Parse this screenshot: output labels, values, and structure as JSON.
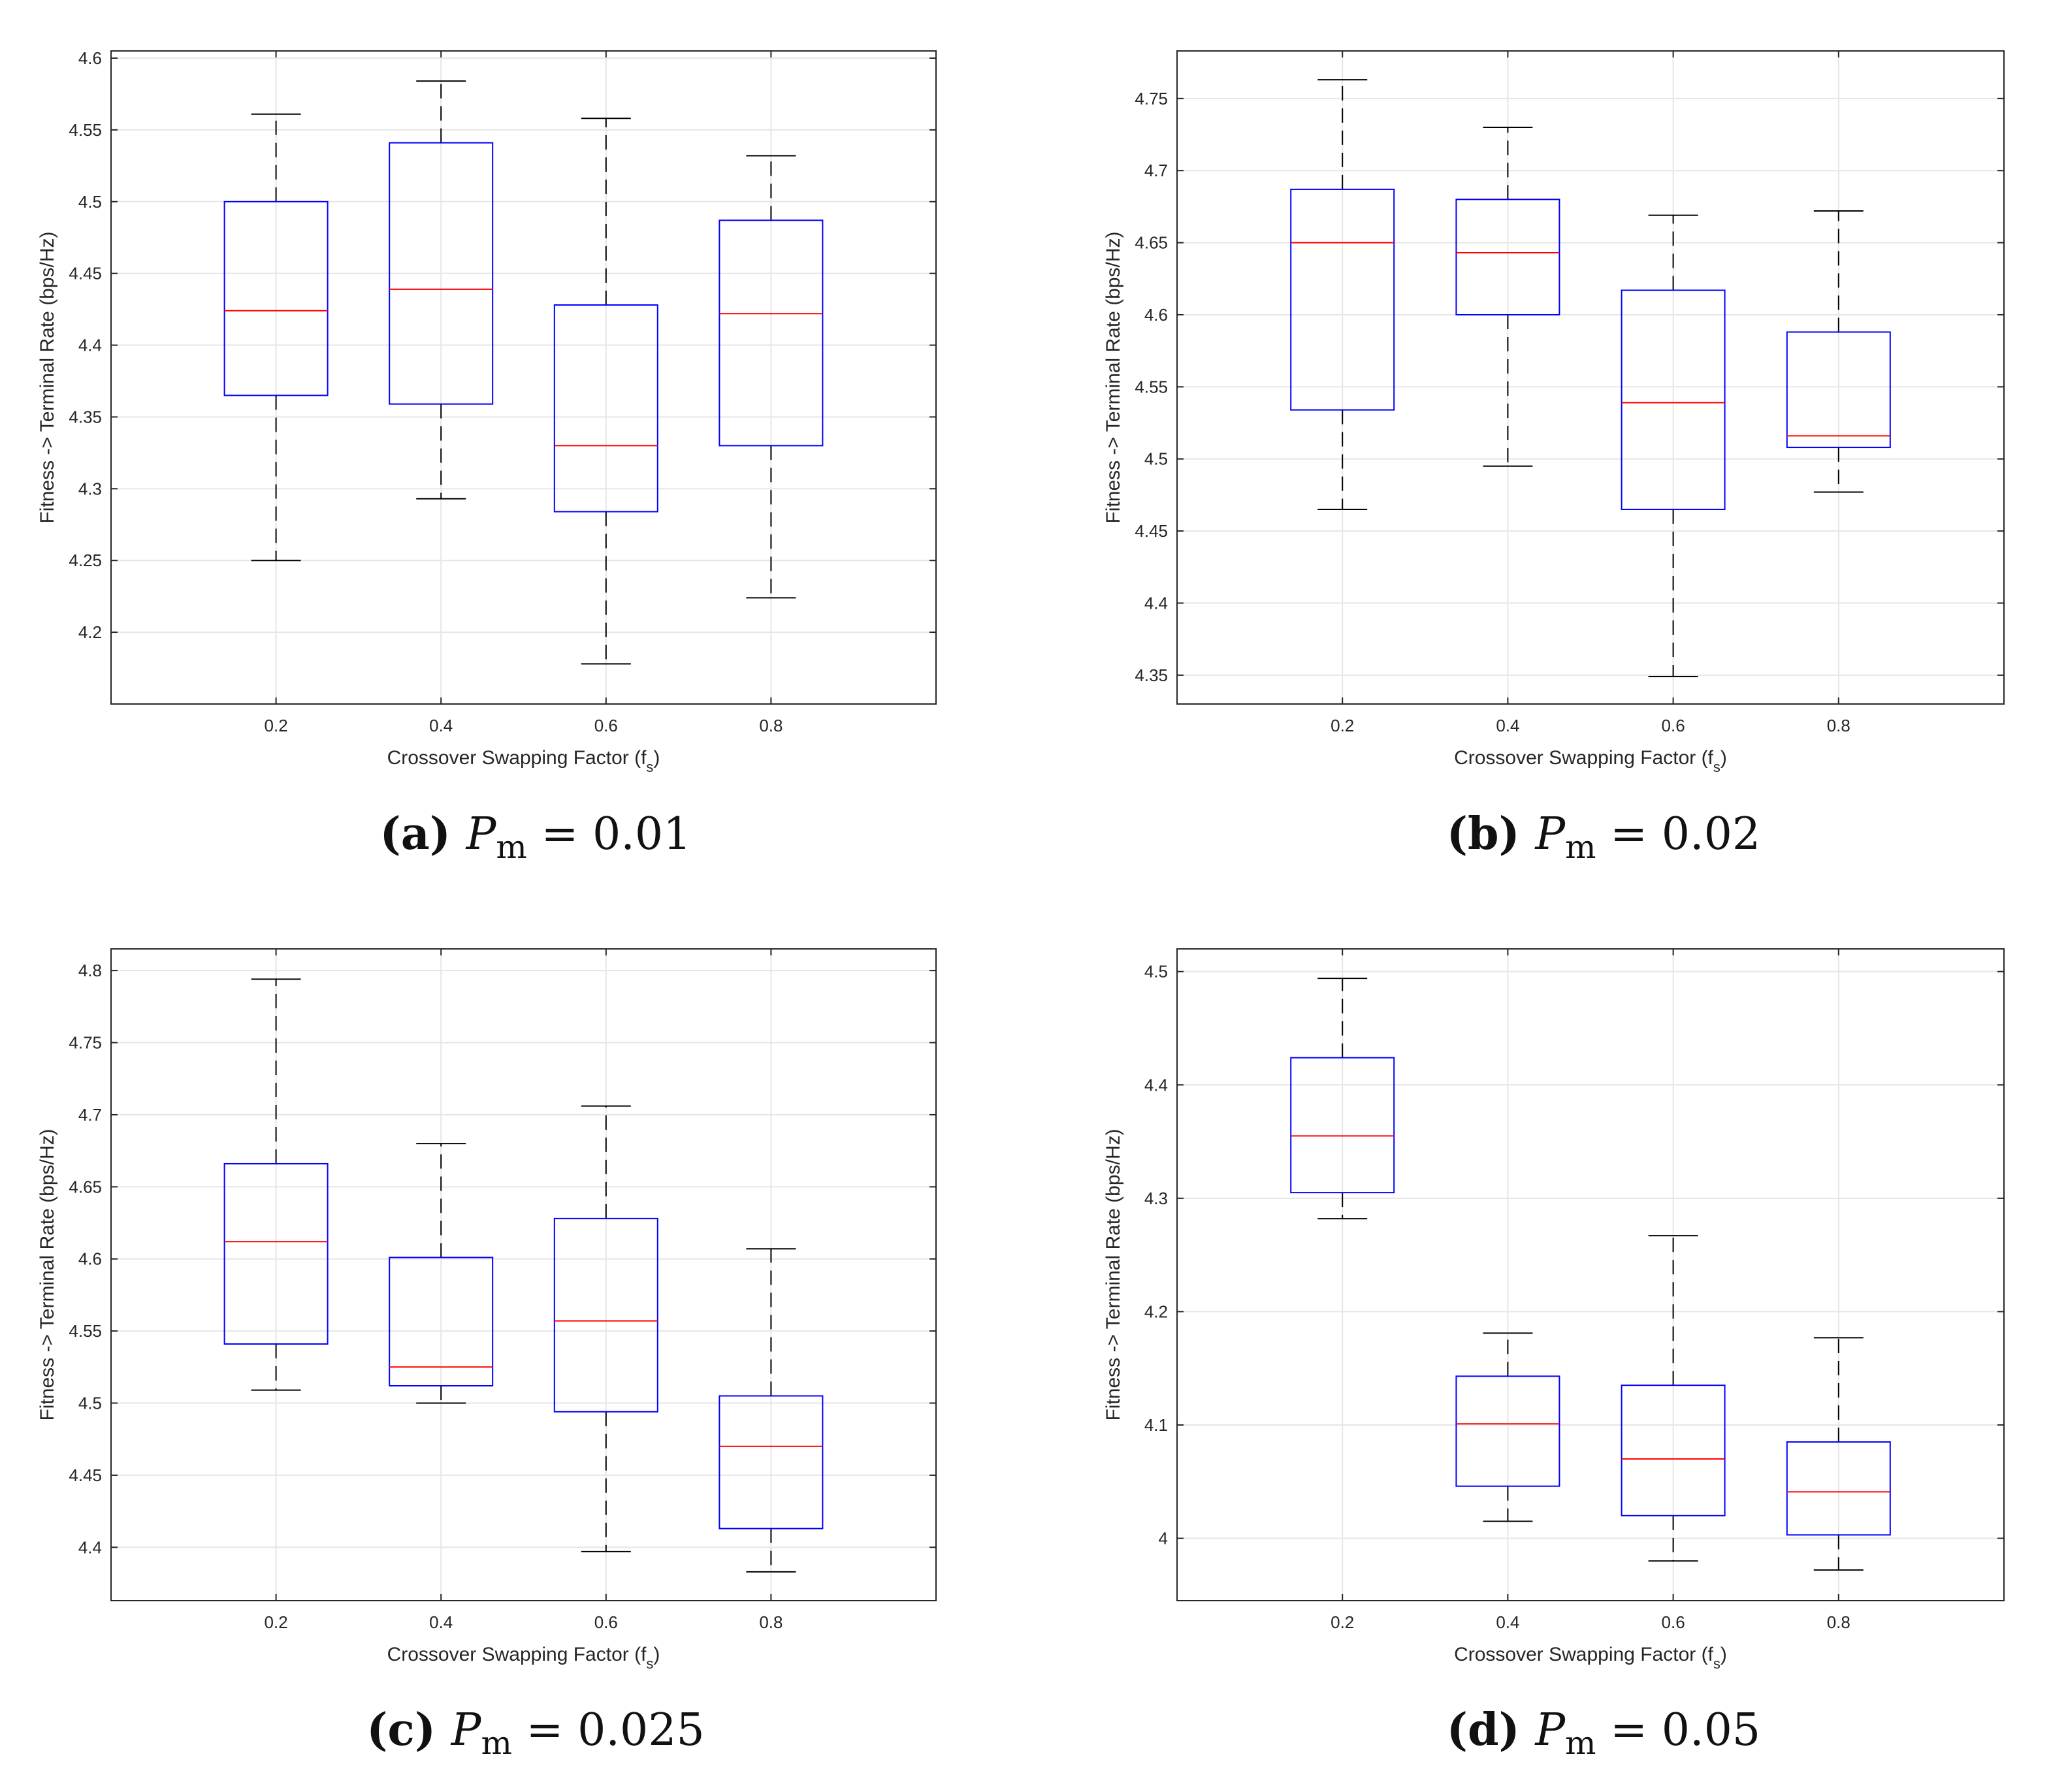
{
  "colors": {
    "box": "#0000ff",
    "median": "#ff0000",
    "whisker": "#000000",
    "grid": "#e6e6e6",
    "axis": "#262626"
  },
  "chart_data": [
    {
      "type": "boxplot",
      "panel": "a",
      "caption": {
        "label": "(a)",
        "symbol": "P",
        "subscript": "m",
        "value": "= 0.01"
      },
      "xlabel": "Crossover Swapping Factor (f",
      "xlabel_sub": "s",
      "xlabel_end": ")",
      "ylabel": "Fitness -> Terminal Rate (bps/Hz)",
      "categories": [
        "0.2",
        "0.4",
        "0.6",
        "0.8"
      ],
      "ylim": [
        4.15,
        4.605
      ],
      "yticks": [
        "4.2",
        "4.25",
        "4.3",
        "4.35",
        "4.4",
        "4.45",
        "4.5",
        "4.55",
        "4.6"
      ],
      "boxes": [
        {
          "min": 4.25,
          "q1": 4.365,
          "median": 4.424,
          "q3": 4.5,
          "max": 4.561
        },
        {
          "min": 4.293,
          "q1": 4.359,
          "median": 4.439,
          "q3": 4.541,
          "max": 4.584
        },
        {
          "min": 4.178,
          "q1": 4.284,
          "median": 4.33,
          "q3": 4.428,
          "max": 4.558
        },
        {
          "min": 4.224,
          "q1": 4.33,
          "median": 4.422,
          "q3": 4.487,
          "max": 4.532
        }
      ]
    },
    {
      "type": "boxplot",
      "panel": "b",
      "caption": {
        "label": "(b)",
        "symbol": "P",
        "subscript": "m",
        "value": "= 0.02"
      },
      "xlabel": "Crossover Swapping Factor (f",
      "xlabel_sub": "s",
      "xlabel_end": ")",
      "ylabel": "Fitness -> Terminal Rate (bps/Hz)",
      "categories": [
        "0.2",
        "0.4",
        "0.6",
        "0.8"
      ],
      "ylim": [
        4.33,
        4.783
      ],
      "yticks": [
        "4.35",
        "4.4",
        "4.45",
        "4.5",
        "4.55",
        "4.6",
        "4.65",
        "4.7",
        "4.75"
      ],
      "boxes": [
        {
          "min": 4.465,
          "q1": 4.534,
          "median": 4.65,
          "q3": 4.687,
          "max": 4.763
        },
        {
          "min": 4.495,
          "q1": 4.6,
          "median": 4.643,
          "q3": 4.68,
          "max": 4.73
        },
        {
          "min": 4.349,
          "q1": 4.465,
          "median": 4.539,
          "q3": 4.617,
          "max": 4.669
        },
        {
          "min": 4.477,
          "q1": 4.508,
          "median": 4.516,
          "q3": 4.588,
          "max": 4.672
        }
      ]
    },
    {
      "type": "boxplot",
      "panel": "c",
      "caption": {
        "label": "(c)",
        "symbol": "P",
        "subscript": "m",
        "value": "= 0.025"
      },
      "xlabel": "Crossover Swapping Factor (f",
      "xlabel_sub": "s",
      "xlabel_end": ")",
      "ylabel": "Fitness -> Terminal Rate (bps/Hz)",
      "categories": [
        "0.2",
        "0.4",
        "0.6",
        "0.8"
      ],
      "ylim": [
        4.363,
        4.815
      ],
      "yticks": [
        "4.4",
        "4.45",
        "4.5",
        "4.55",
        "4.6",
        "4.65",
        "4.7",
        "4.75",
        "4.8"
      ],
      "boxes": [
        {
          "min": 4.509,
          "q1": 4.541,
          "median": 4.612,
          "q3": 4.666,
          "max": 4.794
        },
        {
          "min": 4.5,
          "q1": 4.512,
          "median": 4.525,
          "q3": 4.601,
          "max": 4.68
        },
        {
          "min": 4.397,
          "q1": 4.494,
          "median": 4.557,
          "q3": 4.628,
          "max": 4.706
        },
        {
          "min": 4.383,
          "q1": 4.413,
          "median": 4.47,
          "q3": 4.505,
          "max": 4.607
        }
      ]
    },
    {
      "type": "boxplot",
      "panel": "d",
      "caption": {
        "label": "(d)",
        "symbol": "P",
        "subscript": "m",
        "value": "= 0.05"
      },
      "xlabel": "Crossover Swapping Factor (f",
      "xlabel_sub": "s",
      "xlabel_end": ")",
      "ylabel": "Fitness -> Terminal Rate (bps/Hz)",
      "categories": [
        "0.2",
        "0.4",
        "0.6",
        "0.8"
      ],
      "ylim": [
        3.945,
        4.52
      ],
      "yticks": [
        "4",
        "4.1",
        "4.2",
        "4.3",
        "4.4",
        "4.5"
      ],
      "boxes": [
        {
          "min": 4.282,
          "q1": 4.305,
          "median": 4.355,
          "q3": 4.424,
          "max": 4.494
        },
        {
          "min": 4.015,
          "q1": 4.046,
          "median": 4.101,
          "q3": 4.143,
          "max": 4.181
        },
        {
          "min": 3.98,
          "q1": 4.02,
          "median": 4.07,
          "q3": 4.135,
          "max": 4.267
        },
        {
          "min": 3.972,
          "q1": 4.003,
          "median": 4.041,
          "q3": 4.085,
          "max": 4.177
        }
      ]
    }
  ]
}
